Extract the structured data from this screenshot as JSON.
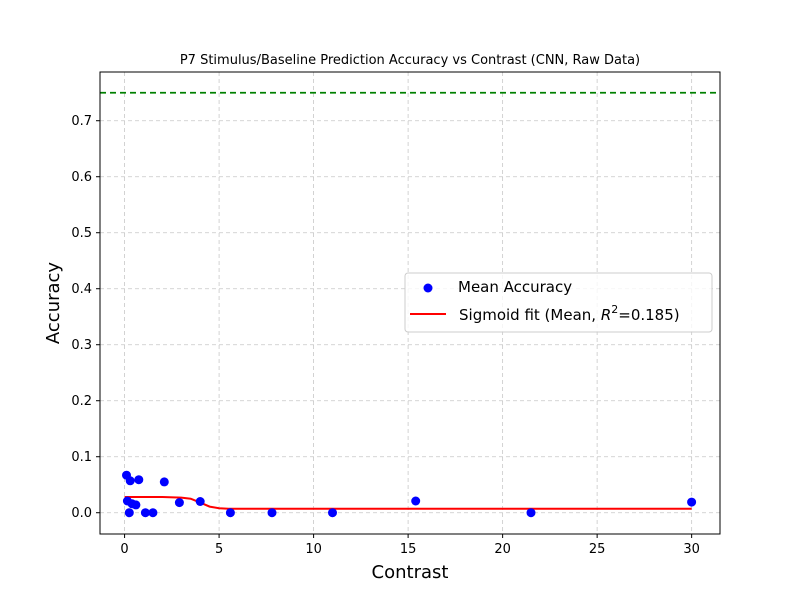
{
  "chart_data": {
    "type": "scatter",
    "title": "P7 Stimulus/Baseline Prediction Accuracy vs Contrast (CNN, Raw Data)",
    "xlabel": "Contrast",
    "ylabel": "Accuracy",
    "xlim": [
      -1.3,
      31.5
    ],
    "ylim": [
      -0.038,
      0.787
    ],
    "xticks": [
      0,
      5,
      10,
      15,
      20,
      25,
      30
    ],
    "yticks": [
      0.0,
      0.1,
      0.2,
      0.3,
      0.4,
      0.5,
      0.6,
      0.7
    ],
    "grid": true,
    "legend_position": "center-right",
    "reference_line": {
      "y": 0.75,
      "color": "#008000",
      "style": "dashed"
    },
    "series": [
      {
        "name": "Mean Accuracy",
        "kind": "scatter",
        "color": "#0000ff",
        "points": [
          {
            "x": 0.1,
            "y": 0.067
          },
          {
            "x": 0.15,
            "y": 0.021
          },
          {
            "x": 0.25,
            "y": 0.0
          },
          {
            "x": 0.3,
            "y": 0.057
          },
          {
            "x": 0.4,
            "y": 0.016
          },
          {
            "x": 0.6,
            "y": 0.014
          },
          {
            "x": 0.75,
            "y": 0.059
          },
          {
            "x": 1.1,
            "y": 0.0
          },
          {
            "x": 1.5,
            "y": 0.0
          },
          {
            "x": 2.1,
            "y": 0.055
          },
          {
            "x": 2.9,
            "y": 0.018
          },
          {
            "x": 4.0,
            "y": 0.02
          },
          {
            "x": 5.6,
            "y": 0.0
          },
          {
            "x": 7.8,
            "y": 0.0
          },
          {
            "x": 11.0,
            "y": 0.0
          },
          {
            "x": 15.4,
            "y": 0.021
          },
          {
            "x": 21.5,
            "y": 0.0
          },
          {
            "x": 30.0,
            "y": 0.019
          }
        ]
      },
      {
        "name": "Sigmoid fit (Mean, R²=0.185)",
        "kind": "line",
        "color": "#ff0000",
        "points": [
          {
            "x": 0.0,
            "y": 0.028
          },
          {
            "x": 1.0,
            "y": 0.028
          },
          {
            "x": 2.0,
            "y": 0.028
          },
          {
            "x": 3.0,
            "y": 0.027
          },
          {
            "x": 3.5,
            "y": 0.025
          },
          {
            "x": 4.0,
            "y": 0.018
          },
          {
            "x": 4.5,
            "y": 0.011
          },
          {
            "x": 5.0,
            "y": 0.008
          },
          {
            "x": 5.5,
            "y": 0.007
          },
          {
            "x": 10.0,
            "y": 0.007
          },
          {
            "x": 20.0,
            "y": 0.007
          },
          {
            "x": 30.0,
            "y": 0.007
          }
        ]
      }
    ],
    "legend": {
      "scatter_label": "Mean Accuracy",
      "line_label_prefix": "Sigmoid fit (Mean, ",
      "line_label_r": "R",
      "line_label_sup": "2",
      "line_label_suffix": "=0.185)"
    }
  }
}
